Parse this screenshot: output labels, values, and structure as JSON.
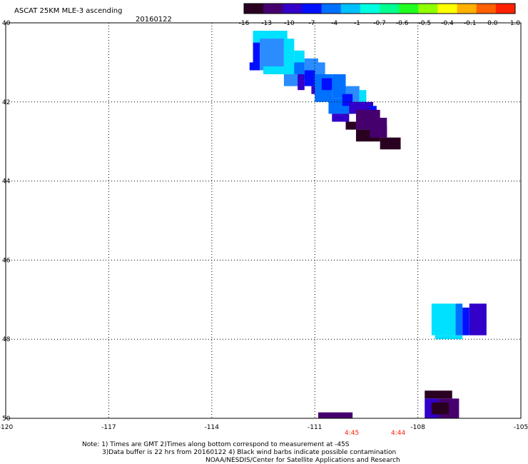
{
  "header": {
    "title": "ASCAT 25KM MLE-3 ascending",
    "date": "20160122"
  },
  "colorbar": {
    "tick_labels": [
      "-16",
      "-13",
      "-10",
      "-7",
      "-4",
      "-1",
      "-0.7",
      "-0.6",
      "-0.5",
      "-0.4",
      "-0.1",
      "0.0",
      "1.0"
    ],
    "colors": [
      "#2a0020",
      "#46006e",
      "#3200c8",
      "#0010ff",
      "#0070ff",
      "#00c0ff",
      "#00ffe0",
      "#00ff90",
      "#20ff20",
      "#90ff00",
      "#ffff00",
      "#ffb000",
      "#ff6000",
      "#ff2000"
    ]
  },
  "axes": {
    "x_tick_labels": [
      "-120",
      "-117",
      "-114",
      "-111",
      "-108",
      "-105"
    ],
    "y_tick_labels": [
      "40",
      "42",
      "44",
      "46",
      "48",
      "50"
    ]
  },
  "time_labels": [
    "4:45",
    "4:44"
  ],
  "time_label_color": "#ff2000",
  "notes": {
    "line1": "Note: 1) Times are GMT 2)Times along bottom correspond to measurement at -45S",
    "line2": "3)Data buffer is 22 hrs from 20160122 4) Black wind barbs indicate possible contamination",
    "line3": "NOAA/NESDIS/Center for Satellite Applications and Research"
  },
  "map_data": {
    "lon_range": [
      -120,
      -105
    ],
    "lat_range": [
      40,
      50
    ],
    "cell_colors": {
      "dark": "#2a0020",
      "purple": "#46006e",
      "violet": "#3200c8",
      "blue": "#0010ff",
      "azure": "#0070ff",
      "lightblue": "#2a8cff",
      "cyan": "#00e0ff"
    },
    "cells": [
      {
        "lon": -112.8,
        "lat": 40.2,
        "w": 1.0,
        "h": 0.4,
        "c": "cyan"
      },
      {
        "lon": -112.8,
        "lat": 40.5,
        "w": 0.2,
        "h": 0.7,
        "c": "blue"
      },
      {
        "lon": -112.6,
        "lat": 40.4,
        "w": 0.7,
        "h": 0.8,
        "c": "lightblue"
      },
      {
        "lon": -111.9,
        "lat": 40.4,
        "w": 0.3,
        "h": 0.8,
        "c": "cyan"
      },
      {
        "lon": -111.6,
        "lat": 40.7,
        "w": 0.3,
        "h": 0.5,
        "c": "cyan"
      },
      {
        "lon": -112.5,
        "lat": 41.1,
        "w": 1.0,
        "h": 0.2,
        "c": "cyan"
      },
      {
        "lon": -112.9,
        "lat": 41.0,
        "w": 0.2,
        "h": 0.2,
        "c": "blue"
      },
      {
        "lon": -111.6,
        "lat": 41.0,
        "w": 0.3,
        "h": 0.3,
        "c": "azure"
      },
      {
        "lon": -111.3,
        "lat": 40.9,
        "w": 0.4,
        "h": 0.5,
        "c": "lightblue"
      },
      {
        "lon": -111.0,
        "lat": 41.0,
        "w": 0.3,
        "h": 0.6,
        "c": "lightblue"
      },
      {
        "lon": -111.9,
        "lat": 41.3,
        "w": 0.6,
        "h": 0.3,
        "c": "lightblue"
      },
      {
        "lon": -111.3,
        "lat": 41.2,
        "w": 0.3,
        "h": 0.4,
        "c": "blue"
      },
      {
        "lon": -111.5,
        "lat": 41.3,
        "w": 0.2,
        "h": 0.4,
        "c": "violet"
      },
      {
        "lon": -111.1,
        "lat": 41.6,
        "w": 0.4,
        "h": 0.2,
        "c": "violet"
      },
      {
        "lon": -111.0,
        "lat": 41.3,
        "w": 0.5,
        "h": 0.7,
        "c": "azure"
      },
      {
        "lon": -110.5,
        "lat": 41.3,
        "w": 0.4,
        "h": 0.6,
        "c": "azure"
      },
      {
        "lon": -110.8,
        "lat": 41.4,
        "w": 0.3,
        "h": 0.3,
        "c": "blue"
      },
      {
        "lon": -110.1,
        "lat": 41.6,
        "w": 0.4,
        "h": 0.4,
        "c": "lightblue"
      },
      {
        "lon": -109.7,
        "lat": 41.7,
        "w": 0.2,
        "h": 0.3,
        "c": "cyan"
      },
      {
        "lon": -110.6,
        "lat": 41.9,
        "w": 0.7,
        "h": 0.4,
        "c": "azure"
      },
      {
        "lon": -110.2,
        "lat": 41.8,
        "w": 0.3,
        "h": 0.3,
        "c": "blue"
      },
      {
        "lon": -110.0,
        "lat": 42.0,
        "w": 0.7,
        "h": 0.3,
        "c": "violet"
      },
      {
        "lon": -109.4,
        "lat": 42.1,
        "w": 0.2,
        "h": 0.2,
        "c": "blue"
      },
      {
        "lon": -109.8,
        "lat": 42.2,
        "w": 0.7,
        "h": 0.5,
        "c": "purple"
      },
      {
        "lon": -109.2,
        "lat": 42.4,
        "w": 0.3,
        "h": 0.5,
        "c": "purple"
      },
      {
        "lon": -110.5,
        "lat": 42.3,
        "w": 0.5,
        "h": 0.2,
        "c": "violet"
      },
      {
        "lon": -110.1,
        "lat": 42.5,
        "w": 0.3,
        "h": 0.2,
        "c": "dark"
      },
      {
        "lon": -109.8,
        "lat": 42.7,
        "w": 0.7,
        "h": 0.3,
        "c": "dark"
      },
      {
        "lon": -109.1,
        "lat": 42.9,
        "w": 0.6,
        "h": 0.3,
        "c": "dark"
      },
      {
        "lon": -109.4,
        "lat": 42.6,
        "w": 0.5,
        "h": 0.3,
        "c": "purple"
      },
      {
        "lon": -107.6,
        "lat": 47.1,
        "w": 0.7,
        "h": 0.8,
        "c": "cyan"
      },
      {
        "lon": -107.5,
        "lat": 47.9,
        "w": 0.8,
        "h": 0.1,
        "c": "cyan"
      },
      {
        "lon": -106.9,
        "lat": 47.1,
        "w": 0.2,
        "h": 0.8,
        "c": "azure"
      },
      {
        "lon": -106.7,
        "lat": 47.2,
        "w": 0.2,
        "h": 0.7,
        "c": "blue"
      },
      {
        "lon": -106.5,
        "lat": 47.1,
        "w": 0.5,
        "h": 0.8,
        "c": "violet"
      },
      {
        "lon": -107.8,
        "lat": 49.3,
        "w": 0.8,
        "h": 0.2,
        "c": "dark"
      },
      {
        "lon": -107.8,
        "lat": 49.5,
        "w": 0.4,
        "h": 0.5,
        "c": "violet"
      },
      {
        "lon": -107.4,
        "lat": 49.5,
        "w": 0.6,
        "h": 0.5,
        "c": "purple"
      },
      {
        "lon": -107.6,
        "lat": 49.6,
        "w": 0.5,
        "h": 0.3,
        "c": "dark"
      },
      {
        "lon": -110.9,
        "lat": 49.85,
        "w": 1.0,
        "h": 0.15,
        "c": "purple"
      }
    ]
  }
}
